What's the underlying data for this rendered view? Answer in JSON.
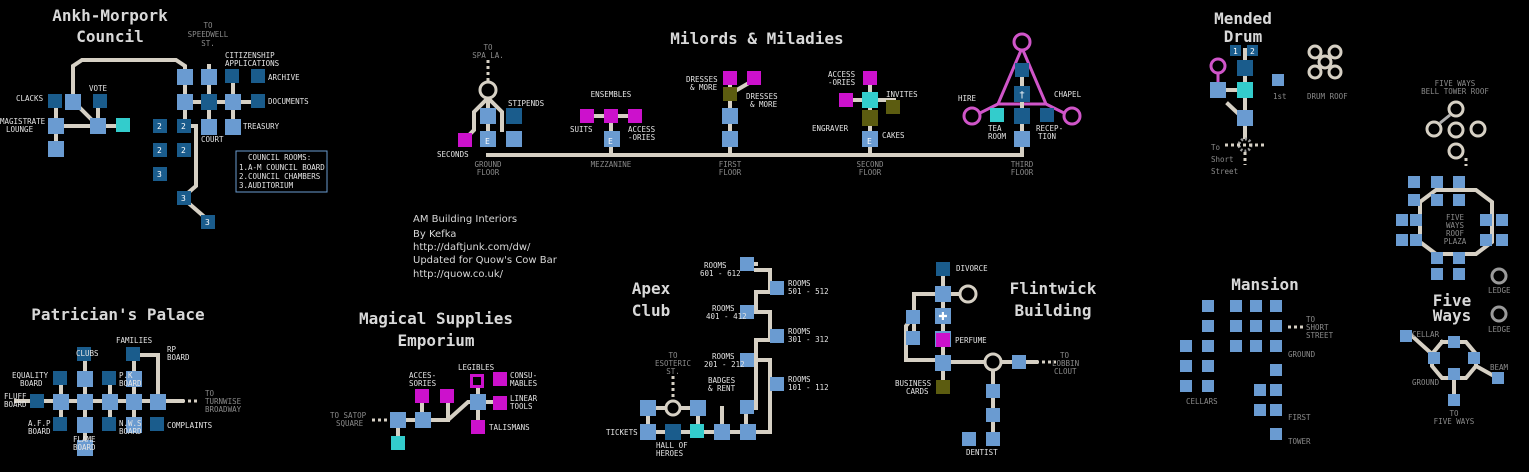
{
  "colors": {
    "light_room": "#6a9bd1",
    "dark_room": "#1a5c8c",
    "shop_room": "#cc11cc",
    "cyan_room": "#33cccc",
    "olive_room": "#5c5c10",
    "road": "#d6d0c4",
    "pink_path": "#d055c9"
  },
  "credits": [
    "AM Building Interiors",
    "By Kefka",
    "http://daftjunk.com/dw/",
    "Updated for Quow's Cow Bar",
    "http://quow.co.uk/"
  ],
  "council": {
    "title": [
      "Ankh-Morpork",
      "Council"
    ],
    "labels": {
      "speedwell": [
        "TO",
        "SPEEDWELL",
        "ST."
      ],
      "citizenship": [
        "CITIZENSHIP",
        "APPLICATIONS"
      ],
      "archive": "ARCHIVE",
      "documents": "DOCUMENTS",
      "treasury": "TREASURY",
      "court": "COURT",
      "clacks": "CLACKS",
      "vote": "VOTE",
      "magistrate": [
        "MAGISTRATE",
        "LOUNGE"
      ]
    },
    "legend_title": "COUNCIL ROOMS:",
    "legend_items": [
      "1.A-M COUNCIL BOARD",
      "2.COUNCIL CHAMBERS",
      "3.AUDITORIUM"
    ],
    "room_numbers": [
      "2",
      "2",
      "2",
      "2",
      "3",
      "3",
      "3"
    ]
  },
  "milords": {
    "title": "Milords & Miladies",
    "labels": {
      "spa": [
        "TO",
        "SPA LA."
      ],
      "stipends": "STIPENDS",
      "seconds": "SECONDS",
      "ensembles": "ENSEMBLES",
      "suits": "SUITS",
      "accessories": [
        "ACCESS",
        "-ORIES"
      ],
      "dresses_left": [
        "DRESSES",
        "& MORE"
      ],
      "dresses_right": [
        "DRESSES",
        "& MORE"
      ],
      "access2": [
        "ACCESS",
        "-ORIES"
      ],
      "invites": "INVITES",
      "engraver": "ENGRAVER",
      "cakes": "CAKES",
      "hire": "HIRE",
      "chapel": "CHAPEL",
      "tea": [
        "TEA",
        "ROOM"
      ],
      "reception": [
        "RECEP-",
        "TION"
      ]
    },
    "floors": [
      [
        "GROUND",
        "FLOOR"
      ],
      [
        "MEZZANINE"
      ],
      [
        "FIRST",
        "FLOOR"
      ],
      [
        "SECOND",
        "FLOOR"
      ],
      [
        "THIRD",
        "FLOOR"
      ]
    ],
    "exit_letter": "E"
  },
  "mended": {
    "title": [
      "Mended",
      "Drum"
    ],
    "labels": {
      "first": "1st",
      "roof": "DRUM ROOF",
      "short": [
        "To",
        "Short",
        "Street"
      ],
      "n1": "1",
      "n2": "2"
    }
  },
  "fiveroof": {
    "labels": {
      "bell": [
        "FIVE WAYS",
        "BELL TOWER ROOF"
      ],
      "plaza": [
        "FIVE",
        "WAYS",
        "ROOF",
        "PLAZA"
      ],
      "ledge1": "LEDGE",
      "ledge2": "LEDGE"
    }
  },
  "patrician": {
    "title": "Patrician's Palace",
    "labels": {
      "families": "FAMILIES",
      "clubs": "CLUBS",
      "rp": [
        "RP",
        "BOARD"
      ],
      "equality": [
        "EQUALITY",
        "BOARD"
      ],
      "pk": [
        "P.K",
        "BOARD"
      ],
      "fluff": [
        "FLUFF",
        "BOARD"
      ],
      "afp": [
        "A.F.P",
        "BOARD"
      ],
      "nws": [
        "N.W.S",
        "BOARD"
      ],
      "flame": [
        "FLAME",
        "BOARD"
      ],
      "complaints": "COMPLAINTS",
      "turnwise": [
        "TO",
        "TURNWISE",
        "BROADWAY"
      ]
    }
  },
  "magical": {
    "title": [
      "Magical Supplies",
      "Emporium"
    ],
    "labels": {
      "accessories": [
        "ACCES-",
        "SORIES"
      ],
      "legibles": "LEGIBLES",
      "consumables": [
        "CONSU-",
        "MABLES"
      ],
      "linear": [
        "LINEAR",
        "TOOLS"
      ],
      "talismans": "TALISMANS",
      "satop": [
        "TO SATOP",
        "SQUARE"
      ]
    }
  },
  "apex": {
    "title": [
      "Apex",
      "Club"
    ],
    "labels": {
      "r601": [
        "ROOMS",
        "601 - 612"
      ],
      "r501": [
        "ROOMS",
        "501 - 512"
      ],
      "r401": [
        "ROOMS",
        "401 - 412"
      ],
      "r301": [
        "ROOMS",
        "301 - 312"
      ],
      "r201": [
        "ROOMS",
        "201 - 212"
      ],
      "r101": [
        "ROOMS",
        "101 - 112"
      ],
      "esoteric": [
        "TO",
        "ESOTERIC",
        "ST."
      ],
      "badges": [
        "BADGES",
        "& RENT"
      ],
      "tickets": "TICKETS",
      "hall": [
        "HALL OF",
        "HEROES"
      ]
    }
  },
  "flintwick": {
    "title": [
      "Flintwick",
      "Building"
    ],
    "labels": {
      "divorce": "DIVORCE",
      "perfume": "PERFUME",
      "business": [
        "BUSINESS",
        "CARDS"
      ],
      "lobbin": [
        "TO",
        "LOBBIN",
        "CLOUT"
      ],
      "dentist": "DENTIST"
    }
  },
  "mansion": {
    "title": "Mansion",
    "labels": {
      "short": [
        "TO",
        "SHORT",
        "STREET"
      ],
      "ground": "GROUND",
      "cellars": "CELLARS",
      "first": "FIRST",
      "tower": "TOWER"
    }
  },
  "fiveways": {
    "title": [
      "Five",
      "Ways"
    ],
    "labels": {
      "cellar": "CELLAR",
      "ground": "GROUND",
      "beam": "BEAM",
      "to": [
        "TO",
        "FIVE WAYS"
      ]
    }
  }
}
